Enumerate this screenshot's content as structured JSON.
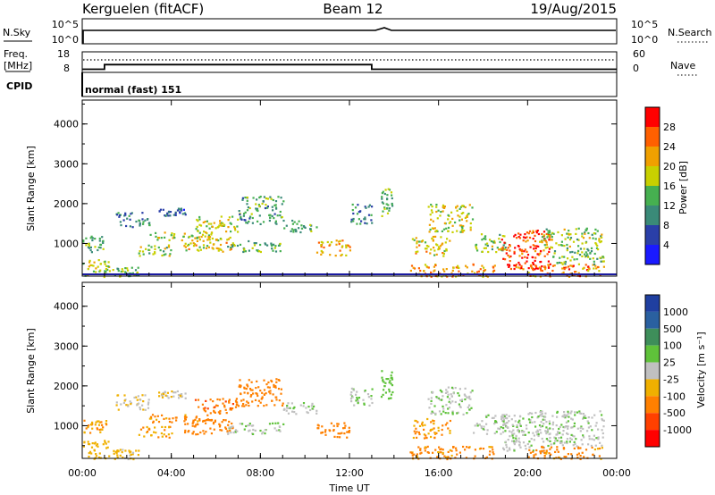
{
  "header": {
    "station": "Kerguelen (fitACF)",
    "beam": "Beam 12",
    "date": "19/Aug/2015"
  },
  "panels": {
    "nsky_label": "N.Sky",
    "nsky_ticks": [
      "10^5",
      "10^0"
    ],
    "nsearch_label": "N.Search",
    "freq_label_top": "Freq.",
    "freq_label_bottom": "[MHz]",
    "freq_ticks": [
      "18",
      "8"
    ],
    "nave_label": "Nave",
    "nave_ticks": [
      "60",
      "0"
    ],
    "cpid_label": "CPID",
    "cpid_text": "normal (fast) 151"
  },
  "chart_data": {
    "type": "heatmap",
    "xlabel": "Time UT",
    "x_ticks": [
      "00:00",
      "04:00",
      "08:00",
      "12:00",
      "16:00",
      "20:00",
      "00:00"
    ],
    "xlim_hours": [
      0,
      24
    ],
    "ylabel": "Slant Range [km]",
    "y_ticks": [
      1000,
      2000,
      3000,
      4000
    ],
    "ylim_km": [
      180,
      4600
    ],
    "freq_mhz": [
      {
        "from": 0,
        "to": 1.0,
        "value": 9.5
      },
      {
        "from": 1.0,
        "to": 13.0,
        "value": 11.8
      },
      {
        "from": 13.0,
        "to": 24,
        "value": 9.5
      }
    ],
    "power": {
      "label": "Power [dB]",
      "ticks": [
        4,
        8,
        12,
        16,
        20,
        24,
        28
      ],
      "colors": [
        "#1a1aff",
        "#2a3fa8",
        "#3a8a78",
        "#46b050",
        "#c8d000",
        "#f0a000",
        "#ff6000",
        "#ff0000"
      ]
    },
    "velocity": {
      "label": "Velocity [m s⁻¹]",
      "ticks": [
        "1000",
        "500",
        "100",
        "25",
        "-25",
        "-100",
        "-500",
        "-1000"
      ],
      "colors": [
        "#1f3fa0",
        "#2a60a0",
        "#3e8e5a",
        "#5fc23a",
        "#c0c0c0",
        "#f0b000",
        "#ff8000",
        "#ff4000",
        "#ff0000"
      ]
    },
    "echo_regions": [
      {
        "t0": 0.0,
        "t1": 1.2,
        "r0": 180,
        "r1": 650,
        "p": 18,
        "v": -60
      },
      {
        "t0": 0.0,
        "t1": 1.1,
        "r0": 800,
        "r1": 1200,
        "p": 12,
        "v": -80
      },
      {
        "t0": 1.3,
        "t1": 2.5,
        "r0": 180,
        "r1": 420,
        "p": 14,
        "v": -40
      },
      {
        "t0": 1.5,
        "t1": 3.0,
        "r0": 1400,
        "r1": 1800,
        "p": 10,
        "v": -30
      },
      {
        "t0": 2.5,
        "t1": 4.0,
        "r0": 700,
        "r1": 1000,
        "p": 16,
        "v": -80
      },
      {
        "t0": 3.4,
        "t1": 4.6,
        "r0": 1700,
        "r1": 1900,
        "p": 8,
        "v": -20
      },
      {
        "t0": 3.0,
        "t1": 6.0,
        "r0": 1100,
        "r1": 1300,
        "p": 16,
        "v": -120
      },
      {
        "t0": 4.5,
        "t1": 6.8,
        "r0": 800,
        "r1": 1200,
        "p": 20,
        "v": -200
      },
      {
        "t0": 5.0,
        "t1": 7.0,
        "r0": 1300,
        "r1": 1700,
        "p": 18,
        "v": -400
      },
      {
        "t0": 6.5,
        "t1": 9.0,
        "r0": 800,
        "r1": 1100,
        "p": 14,
        "v": 10
      },
      {
        "t0": 7.0,
        "t1": 9.0,
        "r0": 1500,
        "r1": 2200,
        "p": 12,
        "v": -300
      },
      {
        "t0": 9.0,
        "t1": 10.5,
        "r0": 1300,
        "r1": 1600,
        "p": 12,
        "v": 10
      },
      {
        "t0": 10.5,
        "t1": 12.0,
        "r0": 700,
        "r1": 1100,
        "p": 22,
        "v": -200
      },
      {
        "t0": 12.0,
        "t1": 13.0,
        "r0": 1500,
        "r1": 2000,
        "p": 10,
        "v": 10
      },
      {
        "t0": 13.4,
        "t1": 13.9,
        "r0": 1700,
        "r1": 2400,
        "p": 14,
        "v": 60
      },
      {
        "t0": 14.7,
        "t1": 16.0,
        "r0": 180,
        "r1": 500,
        "p": 22,
        "v": -150
      },
      {
        "t0": 14.8,
        "t1": 16.5,
        "r0": 700,
        "r1": 1200,
        "p": 20,
        "v": -100
      },
      {
        "t0": 15.5,
        "t1": 17.5,
        "r0": 1300,
        "r1": 2000,
        "p": 18,
        "v": 10
      },
      {
        "t0": 16.0,
        "t1": 18.5,
        "r0": 180,
        "r1": 500,
        "p": 22,
        "v": -150
      },
      {
        "t0": 17.5,
        "t1": 19.0,
        "r0": 800,
        "r1": 1300,
        "p": 16,
        "v": 10
      },
      {
        "t0": 18.8,
        "t1": 21.0,
        "r0": 350,
        "r1": 1350,
        "p": 28,
        "v": 10
      },
      {
        "t0": 20.0,
        "t1": 23.4,
        "r0": 180,
        "r1": 500,
        "p": 24,
        "v": -150
      },
      {
        "t0": 20.5,
        "t1": 23.4,
        "r0": 900,
        "r1": 1400,
        "p": 16,
        "v": 10
      },
      {
        "t0": 21.0,
        "t1": 23.4,
        "r0": 500,
        "r1": 900,
        "p": 14,
        "v": 10
      }
    ]
  }
}
